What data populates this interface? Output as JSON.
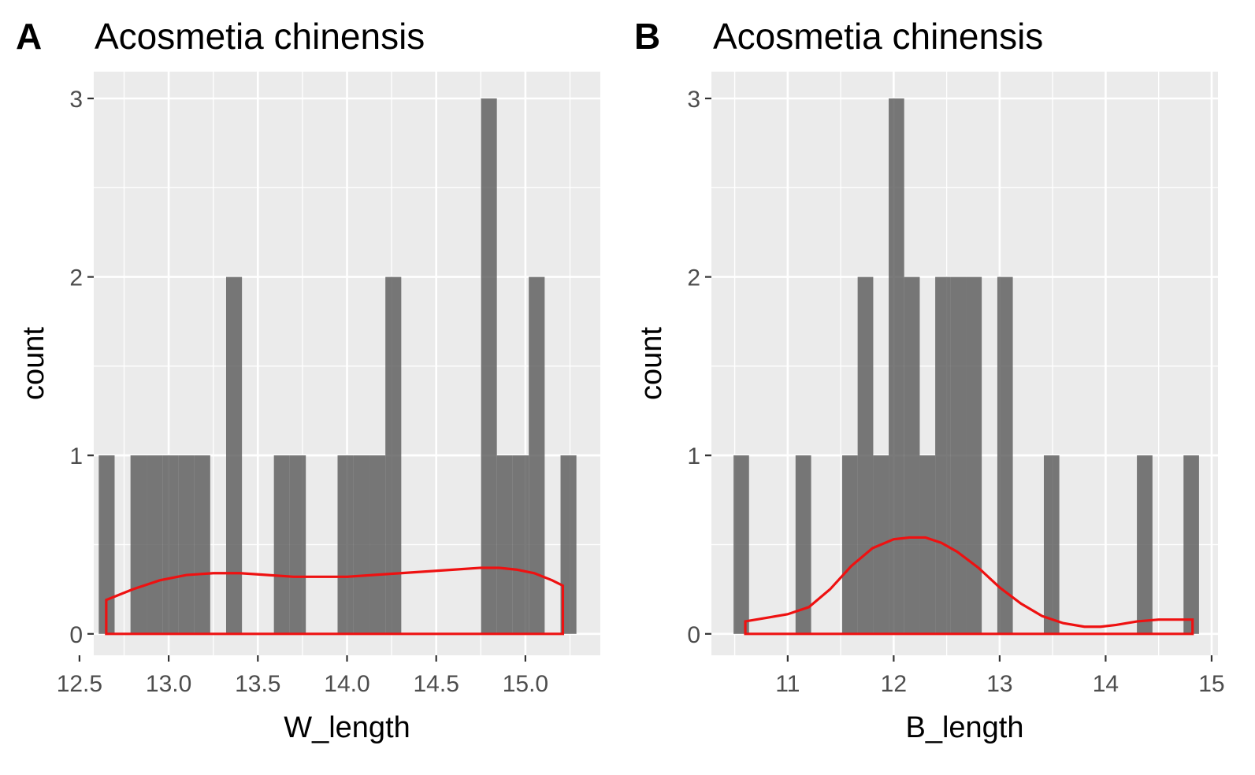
{
  "chart_data": [
    {
      "type": "bar",
      "panel_tag": "A",
      "title": "Acosmetia chinensis",
      "xlabel": "W_length",
      "ylabel": "count",
      "xlim": [
        12.58,
        15.42
      ],
      "ylim": [
        -0.12,
        3.15
      ],
      "x_ticks": [
        "12.5",
        "13.0",
        "13.5",
        "14.0",
        "14.5",
        "15.0"
      ],
      "y_ticks": [
        "0",
        "1",
        "2",
        "3"
      ],
      "bin_width": 0.0893,
      "bins": [
        {
          "xmin": 12.608,
          "xmax": 12.697,
          "count": 1
        },
        {
          "xmin": 12.786,
          "xmax": 12.876,
          "count": 1
        },
        {
          "xmin": 12.876,
          "xmax": 12.965,
          "count": 1
        },
        {
          "xmin": 12.965,
          "xmax": 13.054,
          "count": 1
        },
        {
          "xmin": 13.054,
          "xmax": 13.144,
          "count": 1
        },
        {
          "xmin": 13.144,
          "xmax": 13.233,
          "count": 1
        },
        {
          "xmin": 13.322,
          "xmax": 13.411,
          "count": 2
        },
        {
          "xmin": 13.59,
          "xmax": 13.679,
          "count": 1
        },
        {
          "xmin": 13.679,
          "xmax": 13.769,
          "count": 1
        },
        {
          "xmin": 13.947,
          "xmax": 14.036,
          "count": 1
        },
        {
          "xmin": 14.036,
          "xmax": 14.126,
          "count": 1
        },
        {
          "xmin": 14.126,
          "xmax": 14.215,
          "count": 1
        },
        {
          "xmin": 14.215,
          "xmax": 14.304,
          "count": 2
        },
        {
          "xmin": 14.751,
          "xmax": 14.84,
          "count": 3
        },
        {
          "xmin": 14.84,
          "xmax": 14.929,
          "count": 1
        },
        {
          "xmin": 14.929,
          "xmax": 15.019,
          "count": 1
        },
        {
          "xmin": 15.019,
          "xmax": 15.108,
          "count": 2
        },
        {
          "xmin": 15.197,
          "xmax": 15.286,
          "count": 1
        }
      ],
      "density_curve": {
        "x": [
          12.65,
          12.8,
          12.95,
          13.1,
          13.25,
          13.4,
          13.55,
          13.7,
          13.85,
          14.0,
          14.15,
          14.3,
          14.45,
          14.6,
          14.75,
          14.85,
          14.95,
          15.05,
          15.15,
          15.21
        ],
        "y": [
          0.19,
          0.25,
          0.3,
          0.33,
          0.34,
          0.34,
          0.33,
          0.32,
          0.32,
          0.32,
          0.33,
          0.34,
          0.35,
          0.36,
          0.37,
          0.37,
          0.36,
          0.34,
          0.3,
          0.27
        ]
      }
    },
    {
      "type": "bar",
      "panel_tag": "B",
      "title": "Acosmetia chinensis",
      "xlabel": "B_length",
      "ylabel": "count",
      "xlim": [
        10.28,
        15.06
      ],
      "ylim": [
        -0.12,
        3.15
      ],
      "x_ticks": [
        "11",
        "12",
        "13",
        "14",
        "15"
      ],
      "y_ticks": [
        "0",
        "1",
        "2",
        "3"
      ],
      "bin_width": 0.1464,
      "bins": [
        {
          "xmin": 10.489,
          "xmax": 10.635,
          "count": 1
        },
        {
          "xmin": 11.074,
          "xmax": 11.221,
          "count": 1
        },
        {
          "xmin": 11.514,
          "xmax": 11.66,
          "count": 1
        },
        {
          "xmin": 11.66,
          "xmax": 11.807,
          "count": 2
        },
        {
          "xmin": 11.807,
          "xmax": 11.953,
          "count": 1
        },
        {
          "xmin": 11.953,
          "xmax": 12.099,
          "count": 3
        },
        {
          "xmin": 12.099,
          "xmax": 12.246,
          "count": 2
        },
        {
          "xmin": 12.246,
          "xmax": 12.392,
          "count": 1
        },
        {
          "xmin": 12.392,
          "xmax": 12.539,
          "count": 2
        },
        {
          "xmin": 12.539,
          "xmax": 12.685,
          "count": 2
        },
        {
          "xmin": 12.685,
          "xmax": 12.831,
          "count": 2
        },
        {
          "xmin": 12.978,
          "xmax": 13.124,
          "count": 2
        },
        {
          "xmin": 13.417,
          "xmax": 13.563,
          "count": 1
        },
        {
          "xmin": 14.295,
          "xmax": 14.442,
          "count": 1
        },
        {
          "xmin": 14.735,
          "xmax": 14.881,
          "count": 1
        }
      ],
      "density_curve": {
        "x": [
          10.6,
          10.8,
          11.0,
          11.2,
          11.4,
          11.6,
          11.8,
          12.0,
          12.15,
          12.3,
          12.45,
          12.6,
          12.8,
          13.0,
          13.2,
          13.4,
          13.6,
          13.8,
          13.95,
          14.1,
          14.3,
          14.5,
          14.7,
          14.82
        ],
        "y": [
          0.07,
          0.09,
          0.11,
          0.15,
          0.25,
          0.38,
          0.48,
          0.53,
          0.54,
          0.54,
          0.51,
          0.46,
          0.37,
          0.26,
          0.17,
          0.1,
          0.06,
          0.04,
          0.04,
          0.05,
          0.07,
          0.08,
          0.08,
          0.08
        ]
      }
    }
  ]
}
